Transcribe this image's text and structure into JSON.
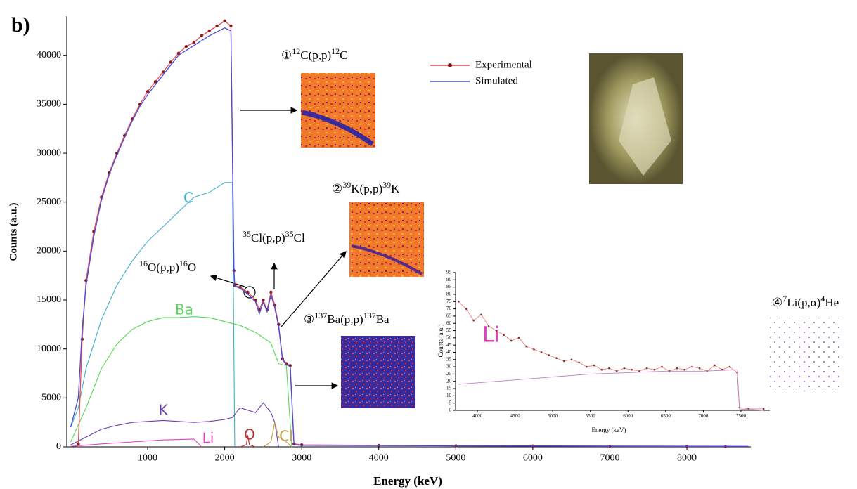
{
  "chart_data": [
    {
      "type": "line",
      "title": "b)",
      "xlabel": "Energy (keV)",
      "ylabel": "Counts (a.u.)",
      "xlim": [
        -50,
        8830
      ],
      "ylim": [
        0,
        44000
      ],
      "xticks": [
        1000,
        2000,
        3000,
        4000,
        5000,
        6000,
        7000,
        8000
      ],
      "yticks": [
        0,
        5000,
        10000,
        15000,
        20000,
        25000,
        30000,
        35000,
        40000
      ],
      "legend": "top",
      "series": [
        {
          "name": "Experimental",
          "color": "#e05050",
          "marker_color": "#8b1a1a",
          "markers": true,
          "x": [
            100,
            150,
            200,
            300,
            400,
            500,
            600,
            700,
            800,
            900,
            1000,
            1100,
            1200,
            1300,
            1400,
            1500,
            1600,
            1700,
            1800,
            1900,
            2000,
            2080,
            2120,
            2130,
            2200,
            2300,
            2400,
            2450,
            2500,
            2550,
            2600,
            2650,
            2700,
            2750,
            2800,
            2850,
            2900,
            3000,
            4000,
            5000,
            6000,
            7000,
            8000,
            8500
          ],
          "values": [
            300,
            11000,
            17000,
            22000,
            25500,
            28000,
            30000,
            31800,
            33500,
            35000,
            36300,
            37300,
            38300,
            39300,
            40200,
            40900,
            41300,
            42000,
            42500,
            43000,
            43500,
            43000,
            18000,
            16500,
            16300,
            15800,
            15000,
            14000,
            15000,
            14000,
            15800,
            14500,
            12500,
            9000,
            8500,
            8300,
            300,
            200,
            150,
            100,
            80,
            60,
            50,
            40
          ]
        },
        {
          "name": "Simulated",
          "color": "#4a4ad8",
          "markers": false,
          "x": [
            0,
            100,
            150,
            200,
            300,
            400,
            500,
            600,
            700,
            800,
            900,
            1000,
            1200,
            1400,
            1600,
            1800,
            2000,
            2080,
            2120,
            2130,
            2200,
            2300,
            2400,
            2450,
            2500,
            2550,
            2600,
            2650,
            2700,
            2750,
            2800,
            2850,
            2900,
            3000,
            8800
          ],
          "values": [
            2000,
            5000,
            12000,
            16500,
            21500,
            25200,
            27800,
            29800,
            31600,
            33300,
            34800,
            36000,
            38000,
            40000,
            41000,
            42000,
            42800,
            42500,
            17800,
            16400,
            16200,
            15600,
            14800,
            13600,
            14800,
            13800,
            15500,
            14200,
            12300,
            8900,
            8400,
            8200,
            200,
            150,
            50
          ]
        }
      ],
      "element_curves": [
        {
          "name": "C",
          "color": "#3fb0c8",
          "x": [
            0,
            100,
            200,
            400,
            600,
            800,
            1000,
            1200,
            1400,
            1600,
            1800,
            2000,
            2100,
            2130
          ],
          "values": [
            2000,
            4000,
            8000,
            13000,
            16500,
            19000,
            21000,
            22500,
            24000,
            25500,
            26000,
            27000,
            27000,
            0
          ]
        },
        {
          "name": "Ba",
          "color": "#58d858",
          "x": [
            0,
            200,
            400,
            600,
            800,
            1000,
            1200,
            1400,
            1600,
            1800,
            2000,
            2200,
            2400,
            2600,
            2700,
            2800,
            2870
          ],
          "values": [
            500,
            4000,
            8000,
            10500,
            12000,
            12800,
            13200,
            13200,
            13300,
            13200,
            12800,
            12400,
            11700,
            10600,
            8500,
            8300,
            0
          ]
        },
        {
          "name": "K",
          "color": "#6a3fb0",
          "x": [
            0,
            200,
            400,
            600,
            800,
            1000,
            1200,
            1400,
            1600,
            1800,
            2000,
            2100,
            2200,
            2400,
            2500,
            2600,
            2650,
            2700
          ],
          "values": [
            200,
            1000,
            1800,
            2200,
            2500,
            2600,
            2700,
            2600,
            2500,
            2600,
            2800,
            3000,
            4000,
            3500,
            4500,
            3500,
            2500,
            0
          ]
        },
        {
          "name": "Li",
          "color": "#e040c0",
          "x": [
            0,
            400,
            800,
            1200,
            1600,
            1700
          ],
          "values": [
            50,
            300,
            500,
            700,
            800,
            0
          ]
        },
        {
          "name": "O",
          "color": "#c03030",
          "x": [
            2200,
            2280,
            2300,
            2320,
            2400
          ],
          "values": [
            0,
            200,
            1200,
            200,
            0
          ]
        },
        {
          "name": "Cl",
          "color": "#c0a040",
          "x": [
            2500,
            2600,
            2650,
            2700,
            2800,
            2870
          ],
          "values": [
            0,
            500,
            2500,
            1000,
            500,
            0
          ]
        }
      ],
      "annotations": [
        {
          "parts": [
            {
              "text": "①"
            },
            {
              "text": "12",
              "sup": true
            },
            {
              "text": "C(p,p)"
            },
            {
              "text": "12",
              "sup": true
            },
            {
              "text": "C"
            }
          ]
        },
        {
          "parts": [
            {
              "text": "②"
            },
            {
              "text": "39",
              "sup": true
            },
            {
              "text": "K(p,p)"
            },
            {
              "text": "39",
              "sup": true
            },
            {
              "text": "K"
            }
          ]
        },
        {
          "parts": [
            {
              "text": "③"
            },
            {
              "text": "137",
              "sup": true
            },
            {
              "text": "Ba(p,p)"
            },
            {
              "text": "137",
              "sup": true
            },
            {
              "text": "Ba"
            }
          ]
        },
        {
          "parts": [
            {
              "text": "④"
            },
            {
              "text": "7",
              "sup": true
            },
            {
              "text": "Li(p,α)"
            },
            {
              "text": "4",
              "sup": true
            },
            {
              "text": "He"
            }
          ]
        },
        {
          "parts": [
            {
              "text": "16",
              "sup": true
            },
            {
              "text": "O(p,p)"
            },
            {
              "text": "16",
              "sup": true
            },
            {
              "text": "O"
            }
          ]
        },
        {
          "parts": [
            {
              "text": "35",
              "sup": true
            },
            {
              "text": "Cl(p,p)"
            },
            {
              "text": "35",
              "sup": true
            },
            {
              "text": "Cl"
            }
          ]
        }
      ]
    },
    {
      "type": "line",
      "label": "Li",
      "xlabel": "Energy (keV)",
      "ylabel": "Counts (a.u.)",
      "xlim": [
        3710,
        7883
      ],
      "ylim": [
        0,
        95
      ],
      "xticks": [
        4000,
        4500,
        5000,
        5500,
        6000,
        6500,
        7000,
        7500
      ],
      "yticks": [
        0,
        5,
        10,
        15,
        20,
        25,
        30,
        35,
        40,
        45,
        50,
        55,
        60,
        65,
        70,
        75,
        80,
        85,
        90,
        95
      ],
      "series": [
        {
          "name": "Experimental",
          "color": "#f08080",
          "marker_color": "#803030",
          "markers": true,
          "x": [
            3750,
            3850,
            3950,
            4050,
            4150,
            4250,
            4350,
            4450,
            4550,
            4650,
            4750,
            4850,
            4950,
            5050,
            5150,
            5250,
            5350,
            5450,
            5550,
            5650,
            5750,
            5850,
            5950,
            6050,
            6150,
            6250,
            6350,
            6450,
            6550,
            6650,
            6750,
            6850,
            6950,
            7050,
            7150,
            7250,
            7350,
            7450,
            7480,
            7600,
            7800
          ],
          "values": [
            75,
            70,
            62,
            66,
            58,
            55,
            52,
            48,
            50,
            44,
            42,
            40,
            38,
            36,
            34,
            35,
            33,
            30,
            31,
            28,
            29,
            27,
            29,
            28,
            27,
            29,
            28,
            30,
            27,
            29,
            28,
            30,
            29,
            27,
            31,
            28,
            30,
            26,
            2,
            1,
            1
          ]
        },
        {
          "name": "Simulated",
          "color": "#c080c0",
          "markers": false,
          "x": [
            3750,
            4500,
            5000,
            5500,
            6000,
            6500,
            7000,
            7450,
            7480,
            7800
          ],
          "values": [
            18,
            21,
            23,
            25,
            26,
            27,
            27,
            28,
            1,
            0
          ]
        }
      ]
    }
  ]
}
